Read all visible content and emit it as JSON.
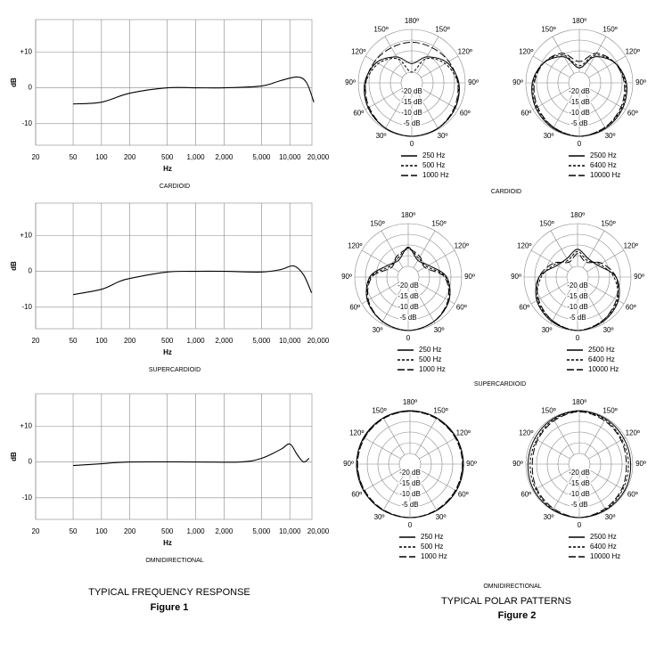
{
  "figures": [
    {
      "title": "TYPICAL FREQUENCY RESPONSE",
      "label": "Figure 1"
    },
    {
      "title": "TYPICAL POLAR PATTERNS",
      "label": "Figure 2"
    }
  ],
  "polar_captions": [
    "CARDIOID",
    "SUPERCARDIOID",
    "OMNIDIRECTIONAL"
  ],
  "chart_data": [
    {
      "type": "line",
      "caption": "CARDIOID",
      "x_label": "Hz",
      "y_label": "dB",
      "x_scale": "log",
      "grid": true,
      "color": "#000000",
      "x": [
        50,
        100,
        200,
        500,
        1000,
        2000,
        5000,
        8000,
        12000,
        15000,
        18000
      ],
      "values": [
        -4.5,
        -4,
        -1.5,
        0,
        0,
        0,
        0.5,
        2,
        3,
        1.5,
        -4
      ],
      "xlim": [
        20,
        20000
      ],
      "xticks": [
        20,
        50,
        100,
        200,
        500,
        {
          "value": 1000,
          "label": "1,000"
        },
        {
          "value": 2000,
          "label": "2,000"
        },
        {
          "value": 5000,
          "label": "5,000"
        },
        {
          "value": 10000,
          "label": "10,000"
        },
        {
          "value": 20000,
          "label": "20,000"
        }
      ],
      "ylim": [
        -16,
        19
      ],
      "yticks": [
        {
          "value": 10,
          "label": "+10"
        },
        0,
        -10
      ]
    },
    {
      "type": "line",
      "caption": "SUPERCARDIOID",
      "x_label": "Hz",
      "y_label": "dB",
      "x_scale": "log",
      "grid": true,
      "color": "#000000",
      "x": [
        50,
        100,
        150,
        200,
        500,
        1000,
        2000,
        5000,
        8000,
        11000,
        14000,
        17000
      ],
      "values": [
        -6.5,
        -5,
        -3,
        -2,
        -0.2,
        0,
        0,
        -0.2,
        0.5,
        1.5,
        -1,
        -6
      ],
      "xlim": [
        20,
        20000
      ],
      "xticks": [
        20,
        50,
        100,
        200,
        500,
        {
          "value": 1000,
          "label": "1,000"
        },
        {
          "value": 2000,
          "label": "2,000"
        },
        {
          "value": 5000,
          "label": "5,000"
        },
        {
          "value": 10000,
          "label": "10,000"
        },
        {
          "value": 20000,
          "label": "20,000"
        }
      ],
      "ylim": [
        -16,
        19
      ],
      "yticks": [
        {
          "value": 10,
          "label": "+10"
        },
        0,
        -10
      ]
    },
    {
      "type": "line",
      "caption": "OMNIDIRECTIONAL",
      "x_label": "Hz",
      "y_label": "dB",
      "x_scale": "log",
      "grid": true,
      "color": "#000000",
      "x": [
        50,
        100,
        200,
        1000,
        3000,
        5000,
        8000,
        10000,
        12000,
        14000,
        16000
      ],
      "values": [
        -1,
        -0.5,
        0,
        0,
        0,
        1,
        3.5,
        5,
        2,
        0,
        1
      ],
      "xlim": [
        20,
        20000
      ],
      "xticks": [
        20,
        50,
        100,
        200,
        500,
        {
          "value": 1000,
          "label": "1,000"
        },
        {
          "value": 2000,
          "label": "2,000"
        },
        {
          "value": 5000,
          "label": "5,000"
        },
        {
          "value": 10000,
          "label": "10,000"
        },
        {
          "value": 20000,
          "label": "20,000"
        }
      ],
      "ylim": [
        -16,
        19
      ],
      "yticks": [
        {
          "value": 10,
          "label": "+10"
        },
        0,
        -10
      ]
    },
    {
      "type": "polar",
      "theta": [
        0,
        30,
        60,
        90,
        120,
        150,
        180,
        210,
        240,
        270,
        300,
        330
      ],
      "rlim": [
        -25,
        0
      ],
      "rticks": [
        {
          "value": -20,
          "label": "-20 dB"
        },
        {
          "value": -15,
          "label": "-15 dB"
        },
        {
          "value": -10,
          "label": "-10 dB"
        },
        {
          "value": -5,
          "label": "-5 dB"
        }
      ],
      "angleticks": [
        0,
        {
          "value": 30,
          "label": "30º"
        },
        {
          "value": 60,
          "label": "60º"
        },
        {
          "value": 90,
          "label": "90º"
        },
        {
          "value": 120,
          "label": "120º"
        },
        {
          "value": 150,
          "label": "150º"
        },
        {
          "value": 180,
          "label": "180º"
        },
        {
          "value": 210,
          "label": "150º"
        },
        {
          "value": 240,
          "label": "120º"
        },
        {
          "value": 270,
          "label": "90º"
        },
        {
          "value": 300,
          "label": "60º"
        },
        {
          "value": 330,
          "label": "30º"
        }
      ],
      "series": [
        {
          "name": "250 Hz",
          "color": "#000000",
          "dash": "solid",
          "values": [
            0,
            -0.5,
            -1.5,
            -3,
            -6,
            -11,
            -16,
            -11,
            -6,
            -3,
            -1.5,
            -0.5
          ]
        },
        {
          "name": "500 Hz",
          "color": "#000000",
          "dash": "dashed",
          "values": [
            0,
            -0.5,
            -1.5,
            -3.5,
            -7,
            -12,
            -20,
            -12,
            -7,
            -3.5,
            -1.5,
            -0.5
          ]
        },
        {
          "name": "1000 Hz",
          "color": "#000000",
          "dash": "longdash",
          "values": [
            0,
            -0.5,
            -2,
            -3.5,
            -5,
            -6,
            -6,
            -6,
            -5,
            -3.5,
            -2,
            -0.5
          ]
        }
      ]
    },
    {
      "type": "polar",
      "theta": [
        0,
        30,
        60,
        90,
        120,
        150,
        180,
        210,
        240,
        270,
        300,
        330
      ],
      "rlim": [
        -25,
        0
      ],
      "rticks": [
        {
          "value": -20,
          "label": "-20 dB"
        },
        {
          "value": -15,
          "label": "-15 dB"
        },
        {
          "value": -10,
          "label": "-10 dB"
        },
        {
          "value": -5,
          "label": "-5 dB"
        }
      ],
      "angleticks": [
        0,
        {
          "value": 30,
          "label": "30º"
        },
        {
          "value": 60,
          "label": "60º"
        },
        {
          "value": 90,
          "label": "90º"
        },
        {
          "value": 120,
          "label": "120º"
        },
        {
          "value": 150,
          "label": "150º"
        },
        {
          "value": 180,
          "label": "180º"
        },
        {
          "value": 210,
          "label": "150º"
        },
        {
          "value": 240,
          "label": "120º"
        },
        {
          "value": 270,
          "label": "90º"
        },
        {
          "value": 300,
          "label": "60º"
        },
        {
          "value": 330,
          "label": "30º"
        }
      ],
      "series": [
        {
          "name": "2500 Hz",
          "color": "#000000",
          "dash": "solid",
          "values": [
            0,
            -0.5,
            -1.5,
            -3,
            -6,
            -11,
            -18,
            -11,
            -6,
            -3,
            -1.5,
            -0.5
          ]
        },
        {
          "name": "6400 Hz",
          "color": "#000000",
          "dash": "dashed",
          "values": [
            0,
            -1,
            -2,
            -3.5,
            -6,
            -10,
            -17,
            -10,
            -6,
            -3.5,
            -2,
            -1
          ]
        },
        {
          "name": "10000 Hz",
          "color": "#000000",
          "dash": "longdash",
          "values": [
            0,
            -1,
            -2.5,
            -4,
            -6,
            -9,
            -15,
            -9,
            -6,
            -4,
            -2.5,
            -1
          ]
        }
      ]
    },
    {
      "type": "polar",
      "theta": [
        0,
        30,
        60,
        90,
        120,
        150,
        180,
        210,
        240,
        270,
        300,
        330
      ],
      "rlim": [
        -25,
        0
      ],
      "rticks": [
        {
          "value": -20,
          "label": "-20 dB"
        },
        {
          "value": -15,
          "label": "-15 dB"
        },
        {
          "value": -10,
          "label": "-10 dB"
        },
        {
          "value": -5,
          "label": "-5 dB"
        }
      ],
      "angleticks": [
        0,
        {
          "value": 30,
          "label": "30º"
        },
        {
          "value": 60,
          "label": "60º"
        },
        {
          "value": 90,
          "label": "90º"
        },
        {
          "value": 120,
          "label": "120º"
        },
        {
          "value": 150,
          "label": "150º"
        },
        {
          "value": 180,
          "label": "180º"
        },
        {
          "value": 210,
          "label": "150º"
        },
        {
          "value": 240,
          "label": "120º"
        },
        {
          "value": 270,
          "label": "90º"
        },
        {
          "value": 300,
          "label": "60º"
        },
        {
          "value": 330,
          "label": "30º"
        }
      ],
      "series": [
        {
          "name": "250 Hz",
          "color": "#000000",
          "dash": "solid",
          "values": [
            0,
            -1,
            -3,
            -7,
            -14,
            -16,
            -11,
            -16,
            -14,
            -7,
            -3,
            -1
          ]
        },
        {
          "name": "500 Hz",
          "color": "#000000",
          "dash": "dashed",
          "values": [
            0,
            -1,
            -3,
            -7.5,
            -15,
            -15,
            -11.5,
            -15,
            -15,
            -7.5,
            -3,
            -1
          ]
        },
        {
          "name": "1000 Hz",
          "color": "#000000",
          "dash": "longdash",
          "values": [
            0,
            -1,
            -3.5,
            -8,
            -16,
            -14,
            -12,
            -14,
            -16,
            -8,
            -3.5,
            -1
          ]
        }
      ]
    },
    {
      "type": "polar",
      "theta": [
        0,
        30,
        60,
        90,
        120,
        150,
        180,
        210,
        240,
        270,
        300,
        330
      ],
      "rlim": [
        -25,
        0
      ],
      "rticks": [
        {
          "value": -20,
          "label": "-20 dB"
        },
        {
          "value": -15,
          "label": "-15 dB"
        },
        {
          "value": -10,
          "label": "-10 dB"
        },
        {
          "value": -5,
          "label": "-5 dB"
        }
      ],
      "angleticks": [
        0,
        {
          "value": 30,
          "label": "30º"
        },
        {
          "value": 60,
          "label": "60º"
        },
        {
          "value": 90,
          "label": "90º"
        },
        {
          "value": 120,
          "label": "120º"
        },
        {
          "value": 150,
          "label": "150º"
        },
        {
          "value": 180,
          "label": "180º"
        },
        {
          "value": 210,
          "label": "150º"
        },
        {
          "value": 240,
          "label": "120º"
        },
        {
          "value": 270,
          "label": "90º"
        },
        {
          "value": 300,
          "label": "60º"
        },
        {
          "value": 330,
          "label": "30º"
        }
      ],
      "series": [
        {
          "name": "2500 Hz",
          "color": "#000000",
          "dash": "solid",
          "values": [
            0,
            -1,
            -3,
            -7,
            -14,
            -15,
            -12,
            -15,
            -14,
            -7,
            -3,
            -1
          ]
        },
        {
          "name": "6400 Hz",
          "color": "#000000",
          "dash": "dashed",
          "values": [
            0,
            -1.5,
            -3.5,
            -8,
            -13,
            -16,
            -13,
            -16,
            -13,
            -8,
            -3.5,
            -1.5
          ]
        },
        {
          "name": "10000 Hz",
          "color": "#000000",
          "dash": "longdash",
          "values": [
            0,
            -1.5,
            -4,
            -7,
            -12,
            -17,
            -14,
            -17,
            -12,
            -7,
            -4,
            -1.5
          ]
        }
      ]
    },
    {
      "type": "polar",
      "theta": [
        0,
        30,
        60,
        90,
        120,
        150,
        180,
        210,
        240,
        270,
        300,
        330
      ],
      "rlim": [
        -25,
        0
      ],
      "rticks": [
        {
          "value": -20,
          "label": "-20 dB"
        },
        {
          "value": -15,
          "label": "-15 dB"
        },
        {
          "value": -10,
          "label": "-10 dB"
        },
        {
          "value": -5,
          "label": "-5 dB"
        }
      ],
      "angleticks": [
        0,
        {
          "value": 30,
          "label": "30º"
        },
        {
          "value": 60,
          "label": "60º"
        },
        {
          "value": 90,
          "label": "90º"
        },
        {
          "value": 120,
          "label": "120º"
        },
        {
          "value": 150,
          "label": "150º"
        },
        {
          "value": 180,
          "label": "180º"
        },
        {
          "value": 210,
          "label": "150º"
        },
        {
          "value": 240,
          "label": "120º"
        },
        {
          "value": 270,
          "label": "90º"
        },
        {
          "value": 300,
          "label": "60º"
        },
        {
          "value": 330,
          "label": "30º"
        }
      ],
      "series": [
        {
          "name": "250 Hz",
          "color": "#000000",
          "dash": "solid",
          "values": [
            0,
            0,
            0,
            0,
            0,
            0,
            0,
            0,
            0,
            0,
            0,
            0
          ]
        },
        {
          "name": "500 Hz",
          "color": "#000000",
          "dash": "dashed",
          "values": [
            0,
            0,
            -0.3,
            -0.3,
            -0.3,
            -0.2,
            -0.2,
            -0.2,
            -0.3,
            -0.3,
            -0.3,
            0
          ]
        },
        {
          "name": "1000 Hz",
          "color": "#000000",
          "dash": "longdash",
          "values": [
            0,
            -0.3,
            -0.5,
            -0.5,
            -0.5,
            -0.4,
            -0.3,
            -0.4,
            -0.5,
            -0.5,
            -0.5,
            -0.3
          ]
        }
      ]
    },
    {
      "type": "polar",
      "theta": [
        0,
        30,
        60,
        90,
        120,
        150,
        180,
        210,
        240,
        270,
        300,
        330
      ],
      "rlim": [
        -25,
        0
      ],
      "rticks": [
        {
          "value": -20,
          "label": "-20 dB"
        },
        {
          "value": -15,
          "label": "-15 dB"
        },
        {
          "value": -10,
          "label": "-10 dB"
        },
        {
          "value": -5,
          "label": "-5 dB"
        }
      ],
      "angleticks": [
        0,
        {
          "value": 30,
          "label": "30º"
        },
        {
          "value": 60,
          "label": "60º"
        },
        {
          "value": 90,
          "label": "90º"
        },
        {
          "value": 120,
          "label": "120º"
        },
        {
          "value": 150,
          "label": "150º"
        },
        {
          "value": 180,
          "label": "180º"
        },
        {
          "value": 210,
          "label": "150º"
        },
        {
          "value": 240,
          "label": "120º"
        },
        {
          "value": 270,
          "label": "90º"
        },
        {
          "value": 300,
          "label": "60º"
        },
        {
          "value": 330,
          "label": "30º"
        }
      ],
      "series": [
        {
          "name": "2500 Hz",
          "color": "#000000",
          "dash": "solid",
          "values": [
            0,
            -0.3,
            -0.5,
            -1,
            -1,
            -0.5,
            0,
            -0.5,
            -1,
            -1,
            -0.5,
            -0.3
          ]
        },
        {
          "name": "6400 Hz",
          "color": "#000000",
          "dash": "dashed",
          "values": [
            0,
            -0.5,
            -1.5,
            -2,
            -2,
            -1,
            -0.3,
            -1,
            -2,
            -2,
            -1.5,
            -0.5
          ]
        },
        {
          "name": "10000 Hz",
          "color": "#000000",
          "dash": "longdash",
          "values": [
            0,
            -1,
            -2,
            -3,
            -2.5,
            -1.5,
            -0.5,
            -1.5,
            -2.5,
            -3,
            -2,
            -1
          ]
        }
      ]
    }
  ]
}
